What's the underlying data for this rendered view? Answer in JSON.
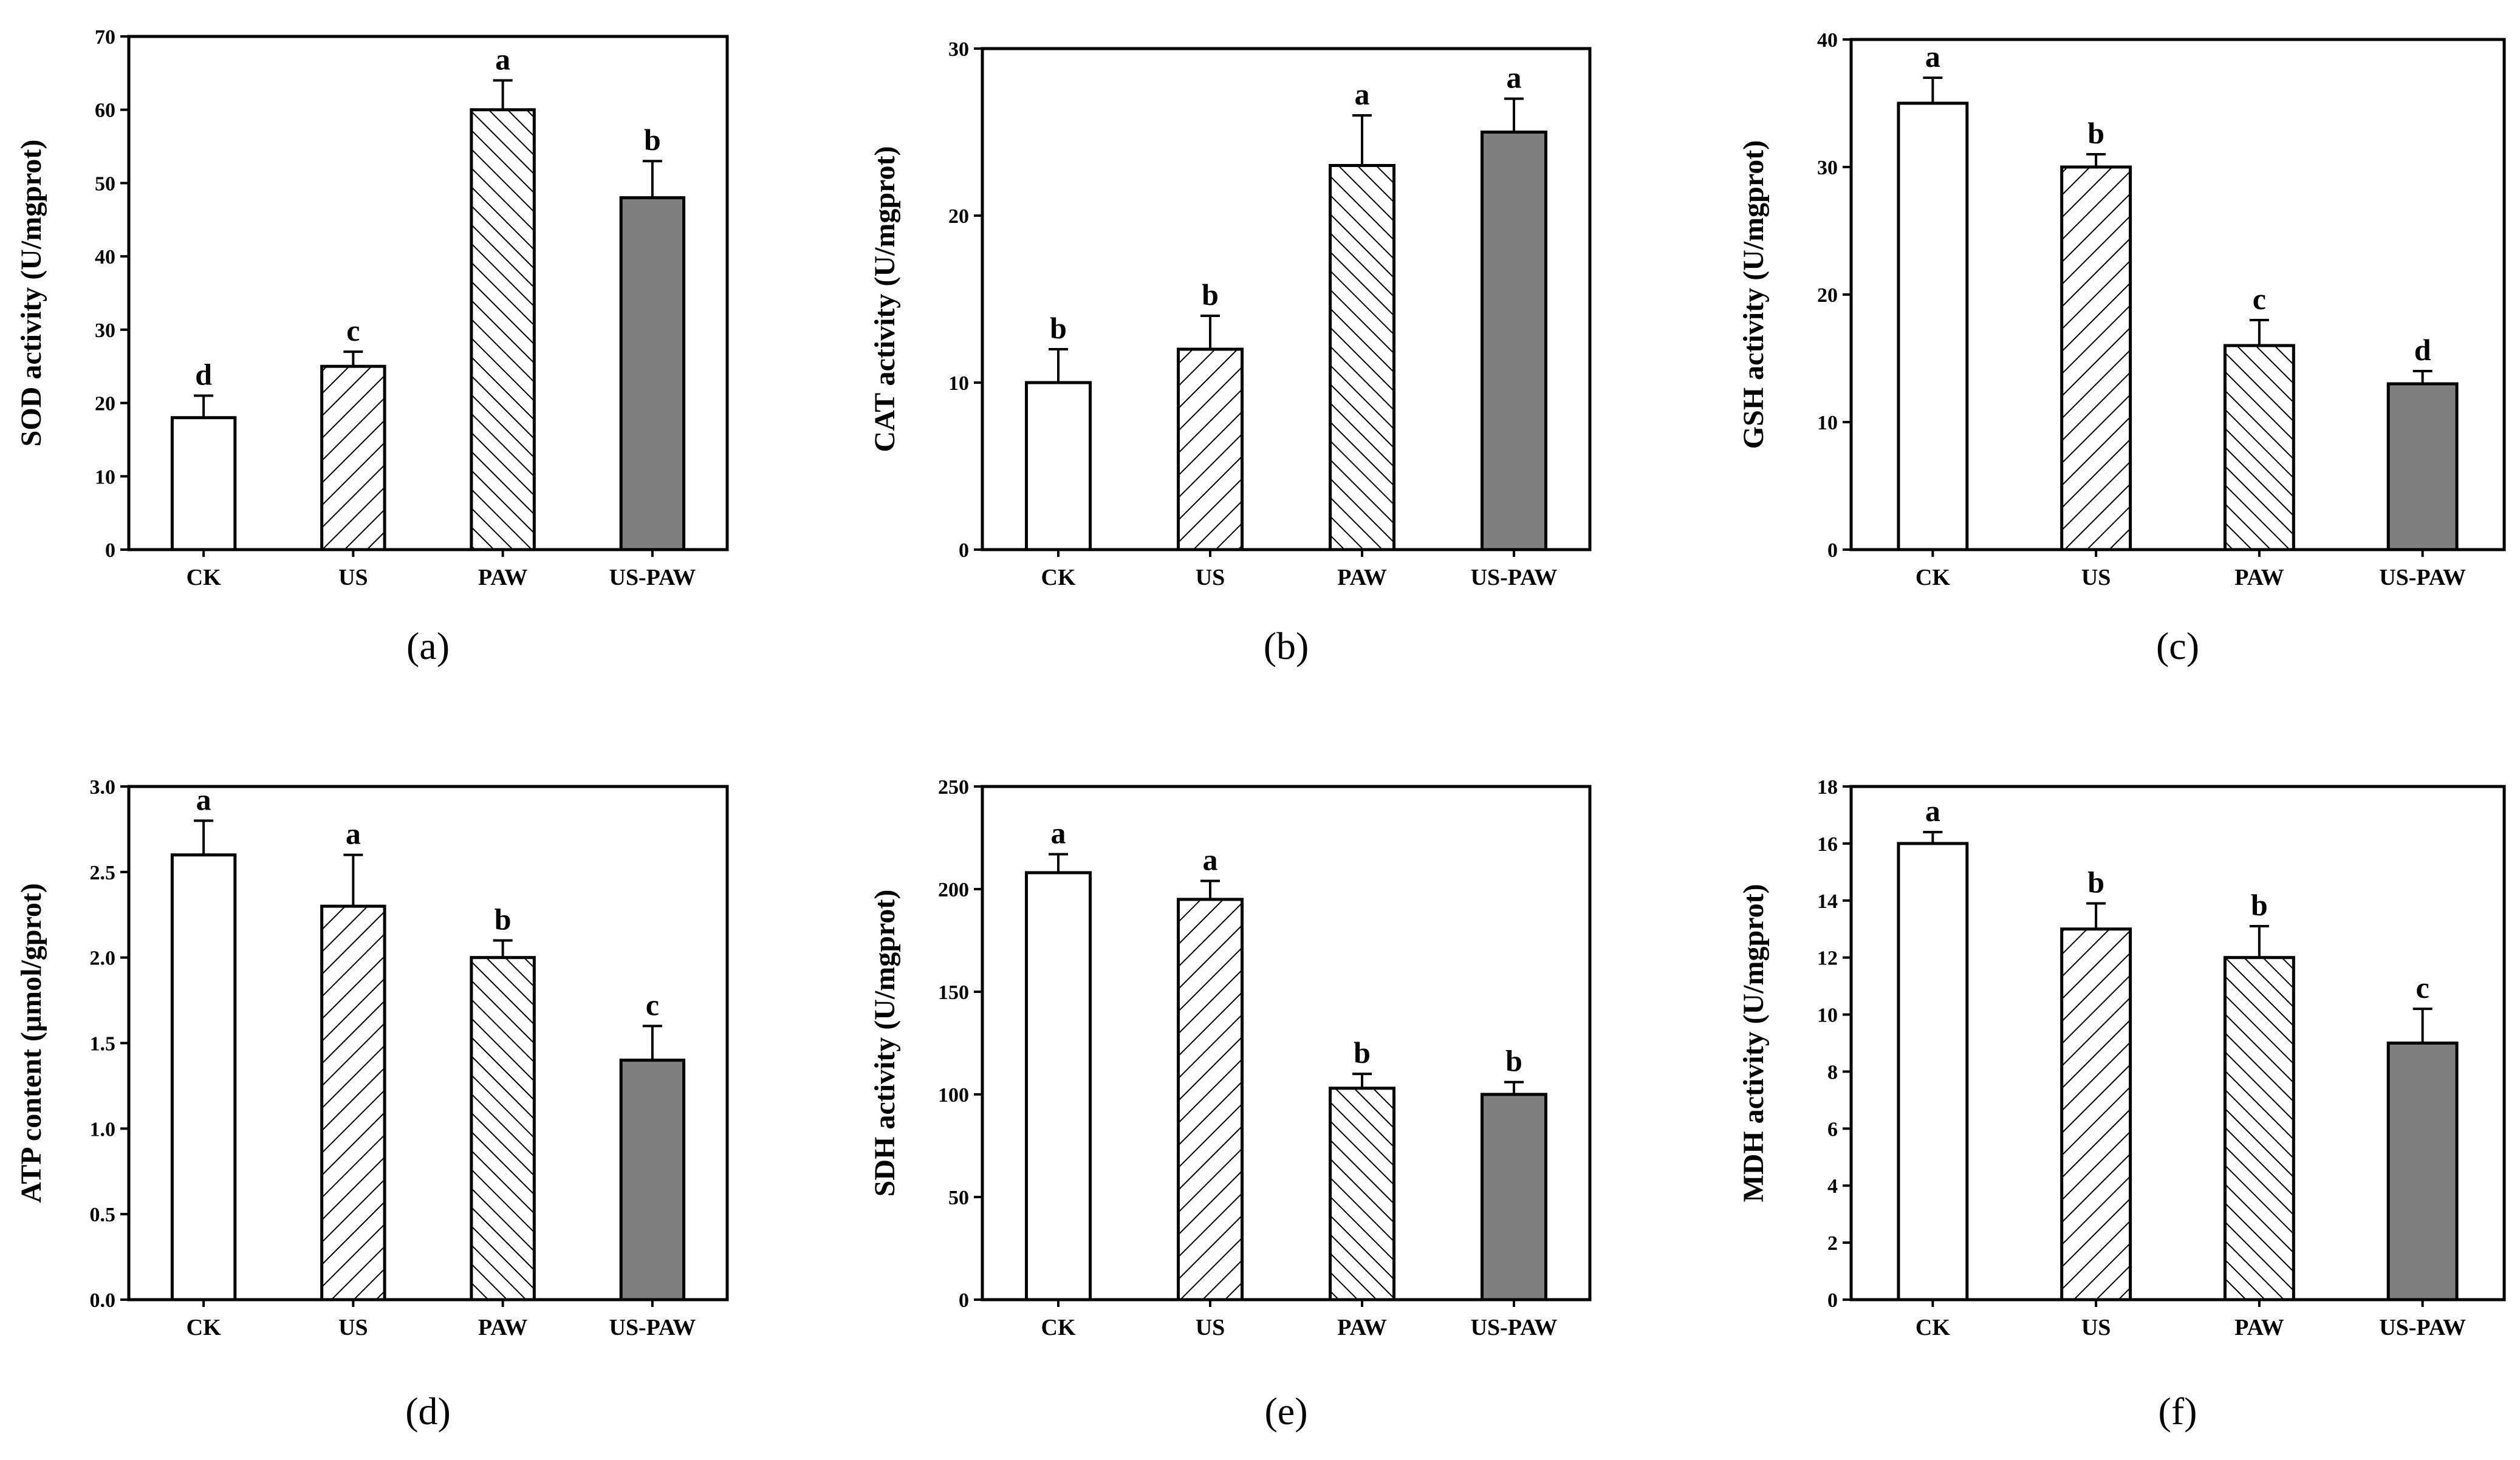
{
  "chart_data": [
    {
      "type": "bar",
      "panel": "(a)",
      "ylabel": "SOD activity (U/mgprot)",
      "categories": [
        "CK",
        "US",
        "PAW",
        "US-PAW"
      ],
      "values": [
        18,
        25,
        60,
        48
      ],
      "errors": [
        3,
        2,
        4,
        5
      ],
      "letters": [
        "d",
        "c",
        "a",
        "b"
      ],
      "ylim": [
        0,
        70
      ],
      "yticks": [
        "0",
        "10",
        "20",
        "30",
        "40",
        "50",
        "60",
        "70"
      ]
    },
    {
      "type": "bar",
      "panel": "(b)",
      "ylabel": "CAT activity (U/mgprot)",
      "categories": [
        "CK",
        "US",
        "PAW",
        "US-PAW"
      ],
      "values": [
        10,
        12,
        23,
        25
      ],
      "errors": [
        2,
        2,
        3,
        2
      ],
      "letters": [
        "b",
        "b",
        "a",
        "a"
      ],
      "ylim": [
        0,
        30
      ],
      "yticks": [
        "0",
        "10",
        "20",
        "30"
      ]
    },
    {
      "type": "bar",
      "panel": "(c)",
      "ylabel": "GSH activity (U/mgprot)",
      "categories": [
        "CK",
        "US",
        "PAW",
        "US-PAW"
      ],
      "values": [
        35,
        30,
        16,
        13
      ],
      "errors": [
        2,
        1,
        2,
        1
      ],
      "letters": [
        "a",
        "b",
        "c",
        "d"
      ],
      "ylim": [
        0,
        40
      ],
      "yticks": [
        "0",
        "10",
        "20",
        "30",
        "40"
      ]
    },
    {
      "type": "bar",
      "panel": "(d)",
      "ylabel": "ATP content (μmol/gprot)",
      "categories": [
        "CK",
        "US",
        "PAW",
        "US-PAW"
      ],
      "values": [
        2.6,
        2.3,
        2.0,
        1.4
      ],
      "errors": [
        0.2,
        0.3,
        0.1,
        0.2
      ],
      "letters": [
        "a",
        "a",
        "b",
        "c"
      ],
      "ylim": [
        0,
        3.0
      ],
      "yticks": [
        "0.0",
        "0.5",
        "1.0",
        "1.5",
        "2.0",
        "2.5",
        "3.0"
      ]
    },
    {
      "type": "bar",
      "panel": "(e)",
      "ylabel": "SDH activity (U/mgprot)",
      "categories": [
        "CK",
        "US",
        "PAW",
        "US-PAW"
      ],
      "values": [
        208,
        195,
        103,
        100
      ],
      "errors": [
        9,
        9,
        7,
        6
      ],
      "letters": [
        "a",
        "a",
        "b",
        "b"
      ],
      "ylim": [
        0,
        250
      ],
      "yticks": [
        "0",
        "50",
        "100",
        "150",
        "200",
        "250"
      ]
    },
    {
      "type": "bar",
      "panel": "(f)",
      "ylabel": "MDH activity (U/mgprot)",
      "categories": [
        "CK",
        "US",
        "PAW",
        "US-PAW"
      ],
      "values": [
        16,
        13,
        12,
        9
      ],
      "errors": [
        0.4,
        0.9,
        1.1,
        1.2
      ],
      "letters": [
        "a",
        "b",
        "b",
        "c"
      ],
      "ylim": [
        0,
        18
      ],
      "yticks": [
        "0",
        "2",
        "4",
        "6",
        "8",
        "10",
        "12",
        "14",
        "16",
        "18"
      ]
    }
  ],
  "colors": {
    "axis": "#000000",
    "bar_outline": "#000000",
    "ck_fill": "#ffffff",
    "us_fill": "#ffffff",
    "paw_fill": "#ffffff",
    "uspaw_fill": "#7f7f7f",
    "hatch": "#000000"
  }
}
